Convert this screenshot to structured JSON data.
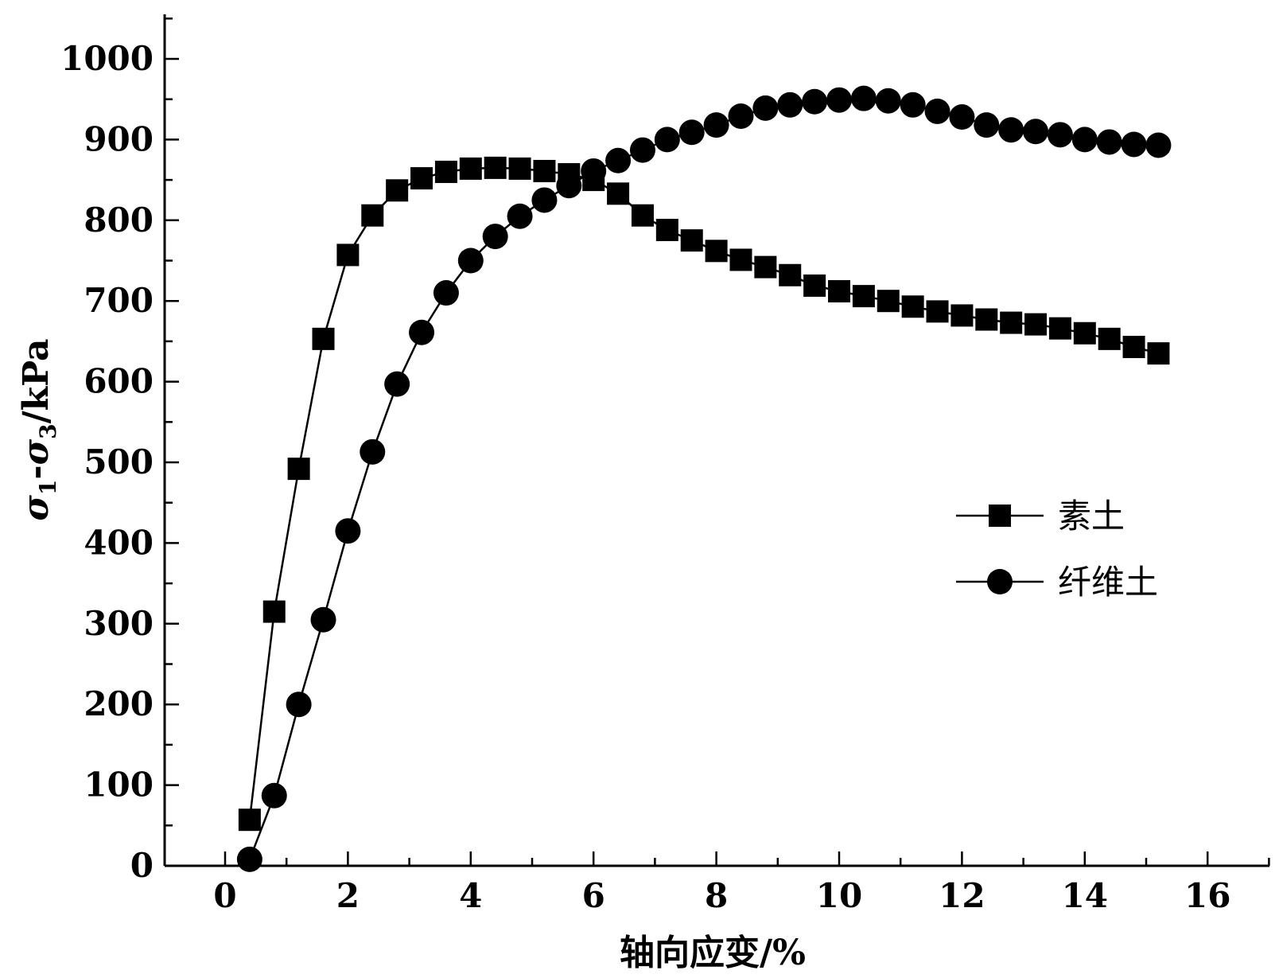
{
  "chart_data": {
    "type": "line",
    "xlabel": "轴向应变/%",
    "ylabel": "σ1-σ3/kPa",
    "ylabel_parts": {
      "sigma": "σ",
      "sub1": "1",
      "dash": "-",
      "sub3": "3",
      "unit": "/kPa"
    },
    "xlim": [
      -1,
      17.4
    ],
    "ylim": [
      0,
      1050
    ],
    "x_ticks": [
      0,
      2,
      4,
      6,
      8,
      10,
      12,
      14,
      16
    ],
    "y_ticks": [
      0,
      100,
      200,
      300,
      400,
      500,
      600,
      700,
      800,
      900,
      1000
    ],
    "grid": false,
    "legend_position": "right-middle",
    "series": [
      {
        "name": "素土",
        "marker": "square",
        "color": "#000000",
        "x": [
          0.4,
          0.8,
          1.2,
          1.6,
          2.0,
          2.4,
          2.8,
          3.2,
          3.6,
          4.0,
          4.4,
          4.8,
          5.2,
          5.6,
          6.0,
          6.4,
          6.8,
          7.2,
          7.6,
          8.0,
          8.4,
          8.8,
          9.2,
          9.6,
          10.0,
          10.4,
          10.8,
          11.2,
          11.6,
          12.0,
          12.4,
          12.8,
          13.2,
          13.6,
          14.0,
          14.4,
          14.8,
          15.2
        ],
        "y": [
          57,
          315,
          492,
          653,
          757,
          806,
          837,
          852,
          860,
          864,
          865,
          864,
          861,
          857,
          850,
          833,
          806,
          788,
          775,
          762,
          751,
          742,
          732,
          719,
          712,
          706,
          700,
          693,
          687,
          682,
          677,
          673,
          671,
          666,
          660,
          653,
          643,
          635
        ]
      },
      {
        "name": "纤维土",
        "marker": "circle",
        "color": "#000000",
        "x": [
          0.4,
          0.8,
          1.2,
          1.6,
          2.0,
          2.4,
          2.8,
          3.2,
          3.6,
          4.0,
          4.4,
          4.8,
          5.2,
          5.6,
          6.0,
          6.4,
          6.8,
          7.2,
          7.6,
          8.0,
          8.4,
          8.8,
          9.2,
          9.6,
          10.0,
          10.4,
          10.8,
          11.2,
          11.6,
          12.0,
          12.4,
          12.8,
          13.2,
          13.6,
          14.0,
          14.4,
          14.8,
          15.2
        ],
        "y": [
          8,
          87,
          200,
          305,
          415,
          513,
          597,
          661,
          710,
          750,
          780,
          805,
          825,
          843,
          861,
          874,
          887,
          900,
          909,
          918,
          929,
          939,
          943,
          947,
          949,
          951,
          948,
          943,
          935,
          928,
          918,
          912,
          910,
          906,
          900,
          897,
          894,
          893
        ]
      }
    ]
  }
}
